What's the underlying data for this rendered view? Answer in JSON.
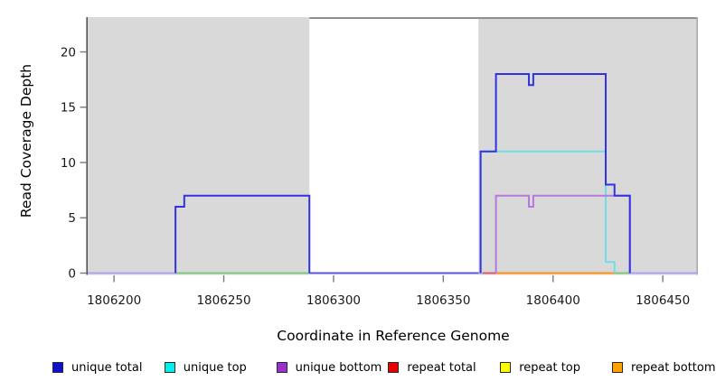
{
  "page": {
    "background": "#ffffff"
  },
  "y_axis": {
    "title": "Read Coverage Depth",
    "ticks": [
      "0",
      "5",
      "10",
      "15",
      "20"
    ],
    "tick_values": [
      0,
      5,
      10,
      15,
      20
    ]
  },
  "x_axis": {
    "title": "Coordinate in Reference Genome",
    "ticks": [
      "1806200",
      "1806250",
      "1806300",
      "1806350",
      "1806400",
      "1806450"
    ],
    "tick_values": [
      1806200,
      1806250,
      1806300,
      1806350,
      1806400,
      1806450
    ]
  },
  "legend": {
    "items": [
      {
        "label": "unique total",
        "color": "#1010d0"
      },
      {
        "label": "unique top",
        "color": "#00f0f0"
      },
      {
        "label": "unique bottom",
        "color": "#9a30d0"
      },
      {
        "label": "repeat total",
        "color": "#e80000"
      },
      {
        "label": "repeat top",
        "color": "#ffff00"
      },
      {
        "label": "repeat bottom",
        "color": "#ffa200"
      }
    ]
  },
  "chart_data": {
    "type": "line",
    "title": "",
    "xlabel": "Coordinate in Reference Genome",
    "ylabel": "Read Coverage Depth",
    "xlim": [
      1806188,
      1806466
    ],
    "ylim": [
      0,
      23
    ],
    "grid": false,
    "legend_position": "bottom",
    "plot_background": {
      "shaded_color": "#d9d9d9",
      "shaded_regions": [
        [
          1806188,
          1806289
        ],
        [
          1806366,
          1806466
        ]
      ],
      "unshaded_gap": [
        1806289,
        1806366
      ]
    },
    "gap_top_border": {
      "from": 1806289,
      "to": 1806466,
      "color": "#8f8f8f"
    },
    "series": [
      {
        "name": "unique total",
        "line_color": "#3232e0",
        "points": [
          [
            1806188,
            0
          ],
          [
            1806228,
            6
          ],
          [
            1806232,
            7
          ],
          [
            1806289,
            0
          ],
          [
            1806367,
            11
          ],
          [
            1806374,
            18
          ],
          [
            1806389,
            17
          ],
          [
            1806391,
            18
          ],
          [
            1806424,
            8
          ],
          [
            1806428,
            7
          ],
          [
            1806435,
            0
          ],
          [
            1806466,
            0
          ]
        ]
      },
      {
        "name": "unique top",
        "line_color": "#6fdfe7",
        "points": [
          [
            1806188,
            0
          ],
          [
            1806367,
            11
          ],
          [
            1806424,
            1
          ],
          [
            1806428,
            0
          ],
          [
            1806466,
            0
          ]
        ]
      },
      {
        "name": "unique bottom",
        "line_color": "#b678dc",
        "points": [
          [
            1806188,
            0
          ],
          [
            1806374,
            7
          ],
          [
            1806389,
            6
          ],
          [
            1806391,
            7
          ],
          [
            1806435,
            0
          ],
          [
            1806466,
            0
          ]
        ]
      },
      {
        "name": "repeat total",
        "line_color": "#d95f6a",
        "points": [
          [
            1806188,
            0
          ],
          [
            1806466,
            0
          ]
        ]
      },
      {
        "name": "repeat top",
        "line_color": "#f5e642",
        "points": [
          [
            1806188,
            0
          ],
          [
            1806466,
            0
          ]
        ]
      },
      {
        "name": "repeat bottom",
        "line_color": "#ff9214",
        "points": [
          [
            1806188,
            0
          ],
          [
            1806466,
            0
          ]
        ]
      }
    ],
    "baseline_overlays": [
      {
        "name": "all-zero-baseline",
        "color": "#b2a4ef",
        "from": 1806188,
        "to": 1806466
      },
      {
        "name": "gap-zero-baseline",
        "color": "#5a52e0",
        "from": 1806289,
        "to": 1806366
      },
      {
        "name": "repeat-total-at-zero",
        "color": "#d95f6a",
        "from": 1806368,
        "to": 1806374
      },
      {
        "name": "repeat-bottom-at-zero",
        "color": "#ff9214",
        "from": 1806374,
        "to": 1806428
      },
      {
        "name": "green-zero-left",
        "color": "#7dc97d",
        "from": 1806228,
        "to": 1806289
      },
      {
        "name": "green-zero-right",
        "color": "#7dc97d",
        "from": 1806428,
        "to": 1806435
      }
    ]
  }
}
